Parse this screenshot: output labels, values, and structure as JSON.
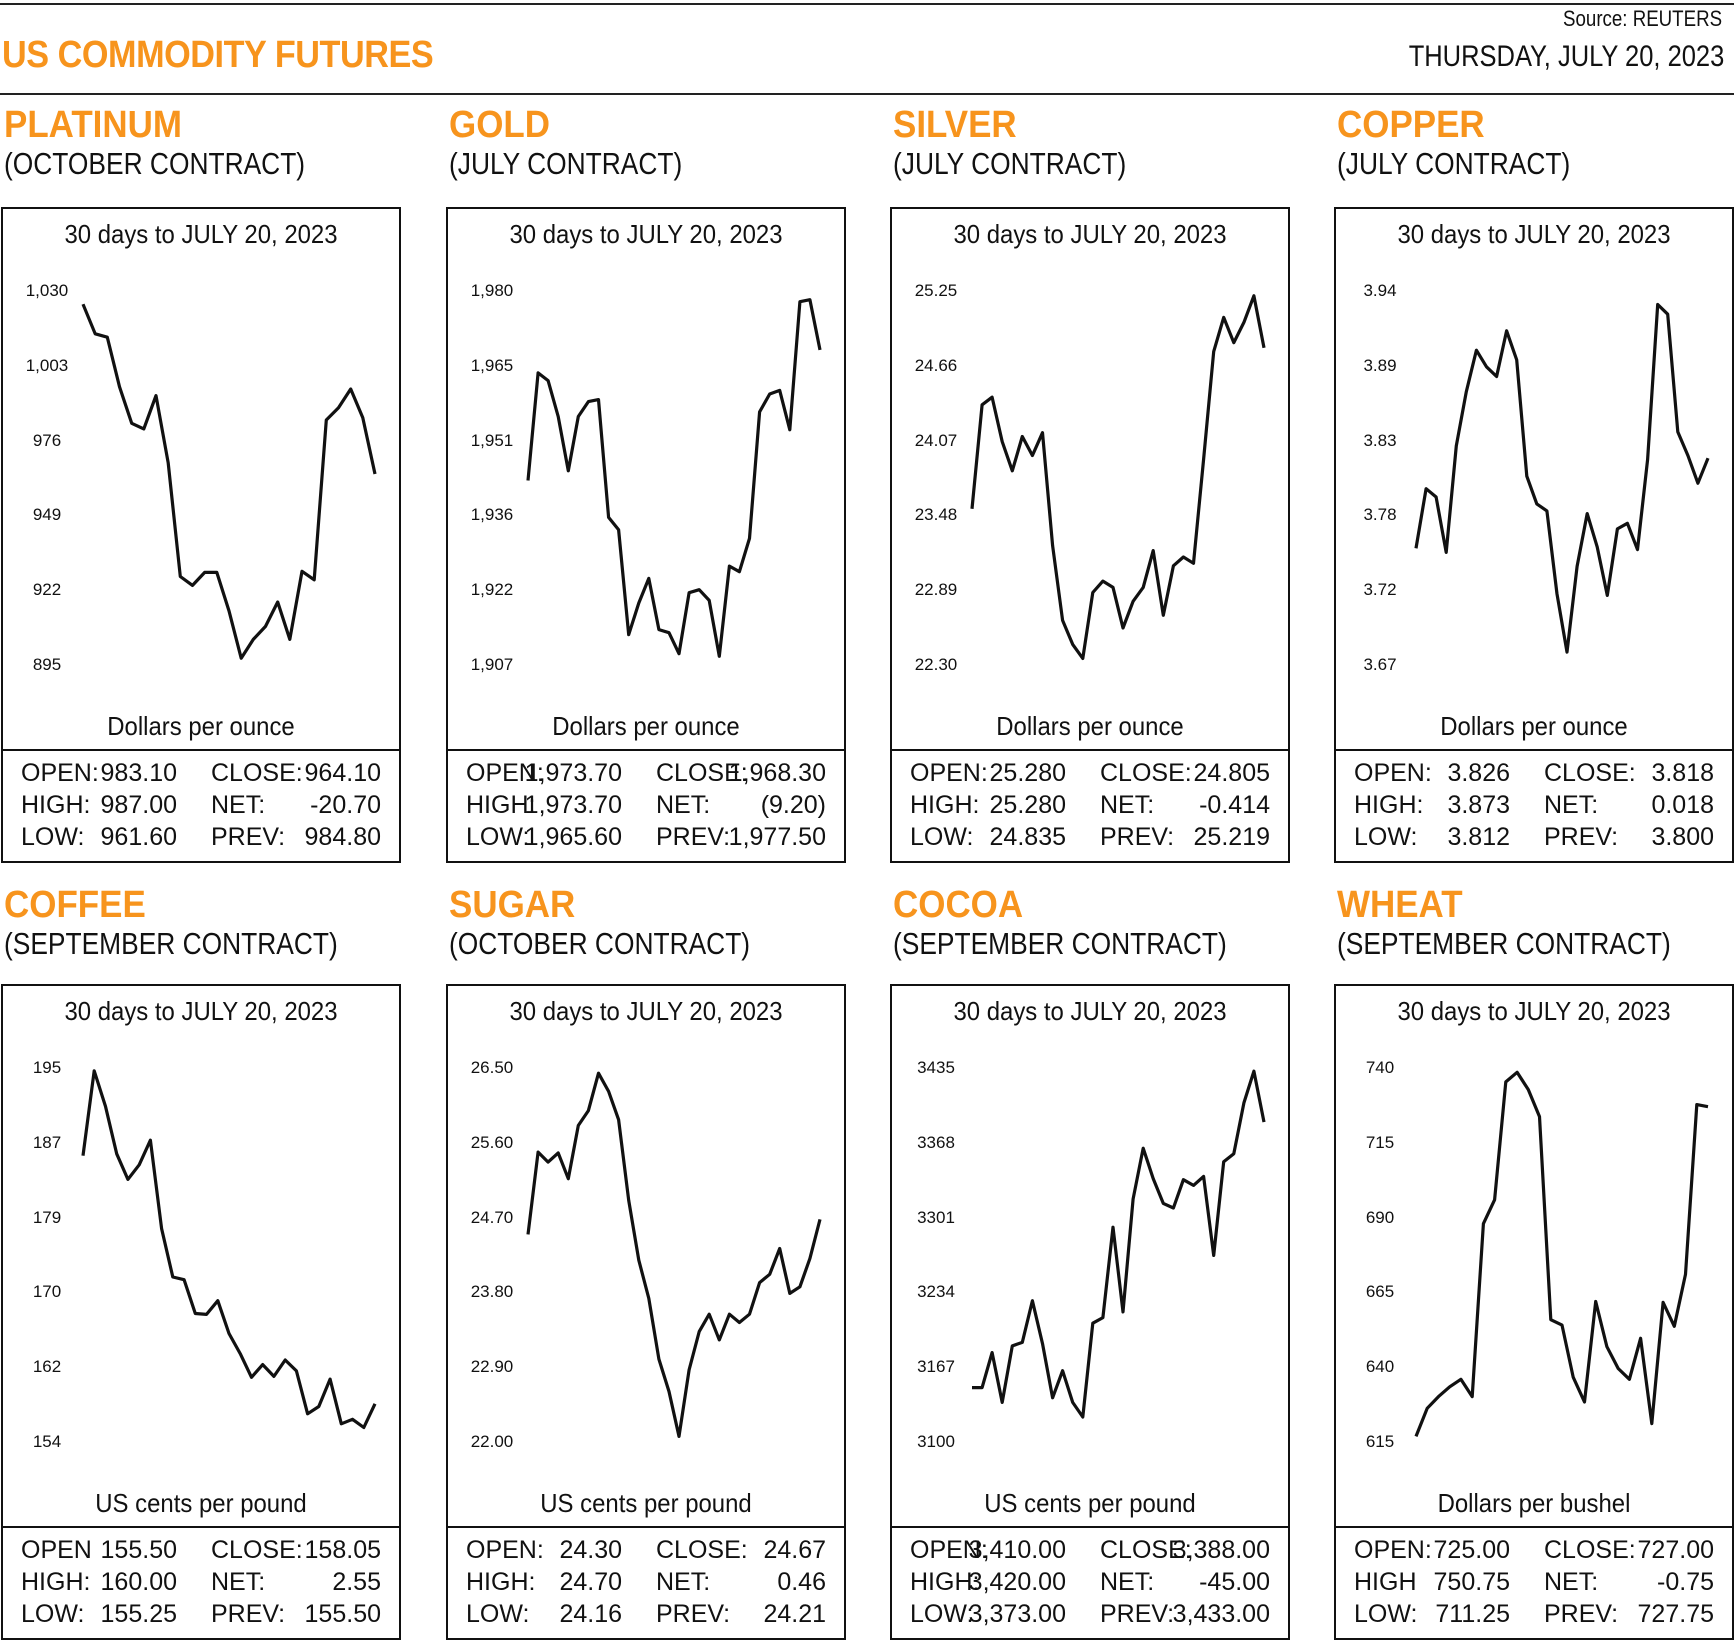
{
  "header": {
    "title": "US COMMODITY FUTURES",
    "source": "Source: REUTERS",
    "date": "THURSDAY, JULY 20, 2023",
    "accent_color": "#f7941d"
  },
  "chart_data": [
    {
      "type": "line",
      "name": "PLATINUM",
      "contract": "(OCTOBER CONTRACT)",
      "title": "30 days to JULY 20, 2023",
      "ylabel": "Dollars per ounce",
      "yticks": [
        "1,030",
        "1,003",
        "976",
        "949",
        "922",
        "895"
      ],
      "ylim": [
        895,
        1030
      ],
      "values": [
        1025.6,
        1014.9,
        1013.7,
        995.8,
        982.6,
        980.6,
        992.6,
        968.3,
        927.3,
        924.1,
        928.8,
        928.8,
        914.9,
        897.8,
        904.6,
        909.3,
        918.1,
        904.6,
        929.2,
        926.1,
        983.8,
        988.2,
        995.0,
        984.6,
        964.3
      ],
      "stats": [
        [
          "OPEN:",
          "983.10",
          "CLOSE:",
          "964.10"
        ],
        [
          "HIGH:",
          "987.00",
          "NET:",
          "-20.70"
        ],
        [
          "LOW:",
          "961.60",
          "PREV:",
          "984.80"
        ]
      ]
    },
    {
      "type": "line",
      "name": "GOLD",
      "contract": "(JULY CONTRACT)",
      "title": "30 days to JULY 20, 2023",
      "ylabel": "Dollars per ounce",
      "yticks": [
        "1,980",
        "1,965",
        "1,951",
        "1,936",
        "1,922",
        "1,907"
      ],
      "ylim": [
        1907,
        1980
      ],
      "values": [
        1943.2,
        1964.2,
        1962.7,
        1955.7,
        1945.1,
        1955.7,
        1958.6,
        1959.0,
        1936.0,
        1933.6,
        1913.1,
        1919.3,
        1924.1,
        1914.1,
        1913.5,
        1909.4,
        1921.3,
        1921.9,
        1919.8,
        1908.9,
        1926.5,
        1925.4,
        1931.9,
        1956.6,
        1960.1,
        1960.8,
        1953.1,
        1978.1,
        1978.5,
        1968.7
      ],
      "stats": [
        [
          "OPEN:",
          "1,973.70",
          "CLOSE:",
          "1,968.30"
        ],
        [
          "HIGH:",
          "1,973.70",
          "NET:",
          "(9.20)"
        ],
        [
          "LOW:",
          "1,965.60",
          "PREV:",
          "1,977.50"
        ]
      ]
    },
    {
      "type": "line",
      "name": "SILVER",
      "contract": "(JULY CONTRACT)",
      "title": "30 days to JULY 20, 2023",
      "ylabel": "Dollars per ounce",
      "yticks": [
        "25.25",
        "24.66",
        "24.07",
        "23.48",
        "22.89",
        "22.30"
      ],
      "ylim": [
        22.3,
        25.25
      ],
      "values": [
        23.54,
        24.36,
        24.42,
        24.07,
        23.84,
        24.11,
        23.96,
        24.14,
        23.25,
        22.66,
        22.47,
        22.36,
        22.88,
        22.97,
        22.92,
        22.6,
        22.81,
        22.92,
        23.21,
        22.7,
        23.09,
        23.16,
        23.11,
        23.93,
        24.78,
        25.05,
        24.85,
        25.01,
        25.22,
        24.81
      ],
      "stats": [
        [
          "OPEN:",
          "25.280",
          "CLOSE:",
          "24.805"
        ],
        [
          "HIGH:",
          "25.280",
          "NET:",
          "-0.414"
        ],
        [
          "LOW:",
          "24.835",
          "PREV:",
          "25.219"
        ]
      ]
    },
    {
      "type": "line",
      "name": "COPPER",
      "contract": "(JULY CONTRACT)",
      "title": "30 days to JULY 20, 2023",
      "ylabel": "Dollars per ounce",
      "yticks": [
        "3.94",
        "3.89",
        "3.83",
        "3.78",
        "3.72",
        "3.67"
      ],
      "ylim": [
        3.67,
        3.94
      ],
      "values": [
        3.755,
        3.798,
        3.792,
        3.752,
        3.829,
        3.868,
        3.898,
        3.886,
        3.879,
        3.912,
        3.891,
        3.807,
        3.787,
        3.782,
        3.722,
        3.68,
        3.742,
        3.78,
        3.756,
        3.721,
        3.769,
        3.773,
        3.754,
        3.819,
        3.931,
        3.924,
        3.839,
        3.822,
        3.802,
        3.82
      ],
      "stats": [
        [
          "OPEN:",
          "3.826",
          "CLOSE:",
          "3.818"
        ],
        [
          "HIGH:",
          "3.873",
          "NET:",
          "0.018"
        ],
        [
          "LOW:",
          "3.812",
          "PREV:",
          "3.800"
        ]
      ]
    },
    {
      "type": "line",
      "name": "COFFEE",
      "contract": "(SEPTEMBER CONTRACT)",
      "title": "30 days to JULY 20, 2023",
      "ylabel": "US cents per pound",
      "yticks": [
        "195",
        "187",
        "179",
        "170",
        "162",
        "154"
      ],
      "ylim": [
        154,
        195
      ],
      "values": [
        185.5,
        194.8,
        190.9,
        185.7,
        182.9,
        184.5,
        187.2,
        177.5,
        172.2,
        171.9,
        168.2,
        168.1,
        169.6,
        166.0,
        163.8,
        161.2,
        162.6,
        161.3,
        163.1,
        161.9,
        157.2,
        158.0,
        161.0,
        156.1,
        156.6,
        155.7,
        158.3
      ],
      "stats": [
        [
          "OPEN",
          "155.50",
          "CLOSE:",
          "158.05"
        ],
        [
          "HIGH:",
          "160.00",
          "NET:",
          "2.55"
        ],
        [
          "LOW:",
          "155.25",
          "PREV:",
          "155.50"
        ]
      ]
    },
    {
      "type": "line",
      "name": "SUGAR",
      "contract": "(OCTOBER CONTRACT)",
      "title": "30 days to JULY 20, 2023",
      "ylabel": "US cents per pound",
      "yticks": [
        "26.50",
        "25.60",
        "24.70",
        "23.80",
        "22.90",
        "22.00"
      ],
      "ylim": [
        22.0,
        26.5
      ],
      "values": [
        24.51,
        25.5,
        25.38,
        25.49,
        25.18,
        25.82,
        26.0,
        26.45,
        26.23,
        25.89,
        24.92,
        24.2,
        23.74,
        23.01,
        22.62,
        22.08,
        22.88,
        23.34,
        23.55,
        23.24,
        23.55,
        23.45,
        23.55,
        23.93,
        24.03,
        24.34,
        23.8,
        23.88,
        24.22,
        24.69
      ],
      "stats": [
        [
          "OPEN:",
          "24.30",
          "CLOSE:",
          "24.67"
        ],
        [
          "HIGH:",
          "24.70",
          "NET:",
          "0.46"
        ],
        [
          "LOW:",
          "24.16",
          "PREV:",
          "24.21"
        ]
      ]
    },
    {
      "type": "line",
      "name": "COCOA",
      "contract": "(SEPTEMBER CONTRACT)",
      "title": "30 days to JULY 20, 2023",
      "ylabel": "US cents per pound",
      "yticks": [
        "3435",
        "3368",
        "3301",
        "3234",
        "3167",
        "3100"
      ],
      "ylim": [
        3100,
        3435
      ],
      "values": [
        3149.6,
        3149.6,
        3181.0,
        3136.4,
        3187.0,
        3190.1,
        3227.5,
        3189.0,
        3140.5,
        3164.8,
        3136.4,
        3123.3,
        3207.3,
        3212.3,
        3293.3,
        3217.4,
        3318.6,
        3364.1,
        3336.8,
        3314.6,
        3310.5,
        3335.8,
        3330.7,
        3338.8,
        3268.0,
        3352.0,
        3359.1,
        3404.6,
        3433.0,
        3387.4
      ],
      "stats": [
        [
          "OPEN:",
          "3,410.00",
          "CLOSE:",
          "3,388.00"
        ],
        [
          "HIGH:",
          "3,420.00",
          "NET:",
          "-45.00"
        ],
        [
          "LOW:",
          "3,373.00",
          "PREV:",
          "3,433.00"
        ]
      ]
    },
    {
      "type": "line",
      "name": "WHEAT",
      "contract": "(SEPTEMBER CONTRACT)",
      "title": "30 days to JULY 20, 2023",
      "ylabel": "Dollars per bushel",
      "yticks": [
        "740",
        "715",
        "690",
        "665",
        "640",
        "615"
      ],
      "ylim": [
        615,
        740
      ],
      "values": [
        617.2,
        626.6,
        630.5,
        633.8,
        636.3,
        630.5,
        688.3,
        696.3,
        735.7,
        738.9,
        733.1,
        724.1,
        656.2,
        654.4,
        637.0,
        628.7,
        662.3,
        647.2,
        639.9,
        636.3,
        650.0,
        621.5,
        662.0,
        654.0,
        671.4,
        728.1,
        727.4
      ],
      "stats": [
        [
          "OPEN:",
          "725.00",
          "CLOSE:",
          "727.00"
        ],
        [
          "HIGH",
          "750.75",
          "NET:",
          "-0.75"
        ],
        [
          "LOW:",
          "711.25",
          "PREV:",
          "727.75"
        ]
      ]
    }
  ]
}
